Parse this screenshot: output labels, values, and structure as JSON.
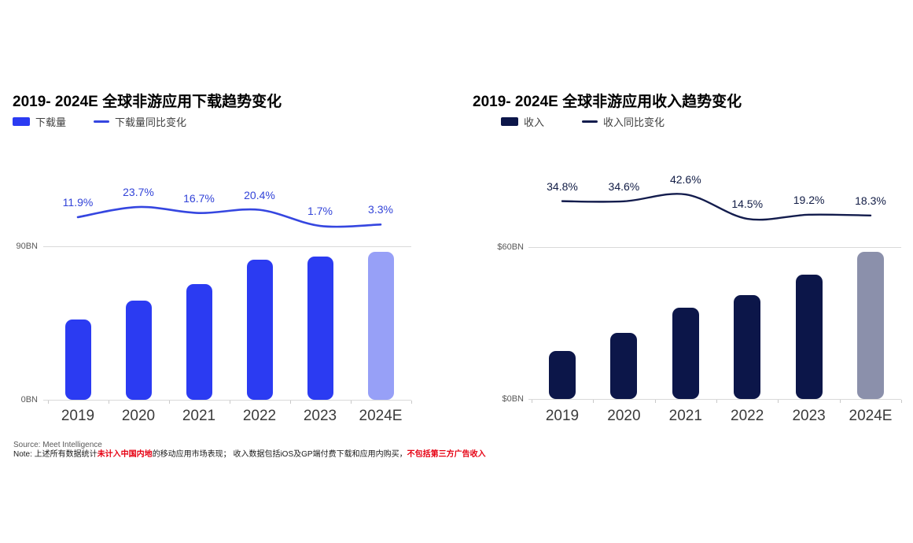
{
  "page": {
    "background": "#ffffff"
  },
  "chart_data": [
    {
      "type": "bar",
      "title": "2019- 2024E 全球非游应用下载趋势变化",
      "categories": [
        "2019",
        "2020",
        "2021",
        "2022",
        "2023",
        "2024E"
      ],
      "series": [
        {
          "name": "下载量",
          "role": "bar",
          "unit": "BN",
          "values": [
            47,
            58,
            68,
            82,
            84,
            87
          ],
          "color": "#2b3bf2",
          "forecast_color": "#97a0f7"
        },
        {
          "name": "下载量同比变化",
          "role": "line",
          "unit": "%",
          "values": [
            11.9,
            23.7,
            16.7,
            20.4,
            1.7,
            3.3
          ],
          "labels": [
            "11.9%",
            "23.7%",
            "16.7%",
            "20.4%",
            "1.7%",
            "3.3%"
          ],
          "color": "#3546e0",
          "label_color": "#3243d8"
        }
      ],
      "ylim": [
        0,
        90
      ],
      "yticks": [
        {
          "label": "90BN",
          "value": 90
        },
        {
          "label": "0BN",
          "value": 0
        }
      ],
      "legend": {
        "bar": "下载量",
        "line": "下载量同比变化"
      },
      "legend_position": "top-left",
      "grid": "top gridline and baseline only"
    },
    {
      "type": "bar",
      "title": "2019- 2024E 全球非游应用收入趋势变化",
      "categories": [
        "2019",
        "2020",
        "2021",
        "2022",
        "2023",
        "2024E"
      ],
      "series": [
        {
          "name": "收入",
          "role": "bar",
          "unit": "$BN",
          "values": [
            19,
            26,
            36,
            41,
            49,
            58
          ],
          "color": "#0c1649",
          "forecast_color": "#8b90ab"
        },
        {
          "name": "收入同比变化",
          "role": "line",
          "unit": "%",
          "values": [
            34.8,
            34.6,
            42.6,
            14.5,
            19.2,
            18.3
          ],
          "labels": [
            "34.8%",
            "34.6%",
            "42.6%",
            "14.5%",
            "19.2%",
            "18.3%"
          ],
          "color": "#131c4d",
          "label_color": "#111c45"
        }
      ],
      "ylim": [
        0,
        60
      ],
      "yticks": [
        {
          "label": "$60BN",
          "value": 60
        },
        {
          "label": "$0BN",
          "value": 0
        }
      ],
      "legend": {
        "bar": "收入",
        "line": "收入同比变化"
      },
      "legend_position": "top-left",
      "grid": "top gridline and baseline only"
    }
  ],
  "footer": {
    "source": "Source: Meet Intelligence",
    "note_prefix": "Note: 上述所有数据统计",
    "note_red1": "未计入中国内地",
    "note_mid": "的移动应用市场表现； 收入数据包括iOS及GP端付费下载和应用内购买，",
    "note_red2": "不包括第三方广告收入"
  }
}
